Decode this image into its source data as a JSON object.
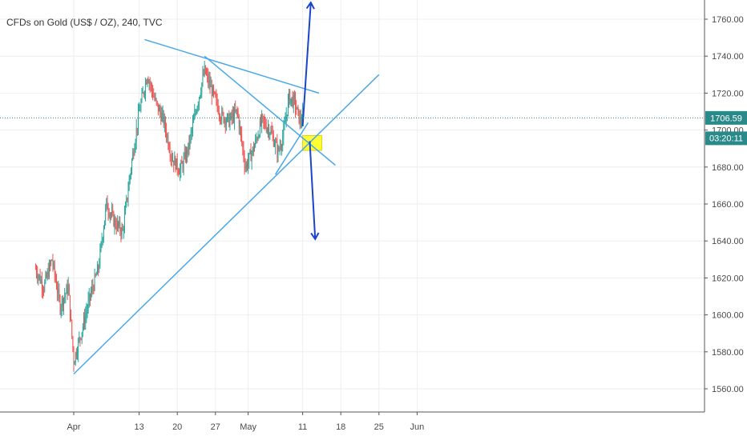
{
  "header": {
    "symbol_title": "CFDs on Gold (US$ / OZ), 240, TVC"
  },
  "chart_data": {
    "type": "candlestick",
    "title": "CFDs on Gold (US$ / OZ), 240, TVC",
    "ylim": [
      1550,
      1770
    ],
    "y_ticks": [
      1560,
      1580,
      1600,
      1620,
      1640,
      1660,
      1680,
      1700,
      1720,
      1740,
      1760
    ],
    "y_tick_labels": [
      "1560.00",
      "1580.00",
      "1600.00",
      "1620.00",
      "1640.00",
      "1660.00",
      "1680.00",
      "1700.00",
      "1720.00",
      "1740.00",
      "1760.00"
    ],
    "x_tick_labels": [
      "Apr",
      "13",
      "20",
      "27",
      "May",
      "11",
      "18",
      "25",
      "Jun"
    ],
    "x_tick_days": [
      1,
      13,
      20,
      27,
      33,
      43,
      50,
      57,
      64
    ],
    "grid": true,
    "current_price": 1706.59,
    "current_price_label": "1706.59",
    "countdown_label": "03:20:11",
    "colors": {
      "up": "#26a69a",
      "down": "#ef5350",
      "trendline": "#4aa8e8",
      "arrow": "#1a45c8",
      "highlight": "#ffff33",
      "price_line": "#2a8a8a"
    },
    "anchors": [
      {
        "day": -6,
        "price": 1625
      },
      {
        "day": -4.5,
        "price": 1615
      },
      {
        "day": -3,
        "price": 1630
      },
      {
        "day": -1.5,
        "price": 1605
      },
      {
        "day": 0,
        "price": 1615
      },
      {
        "day": 1,
        "price": 1575
      },
      {
        "day": 2.5,
        "price": 1592
      },
      {
        "day": 4,
        "price": 1610
      },
      {
        "day": 5.5,
        "price": 1625
      },
      {
        "day": 7,
        "price": 1660
      },
      {
        "day": 8.5,
        "price": 1650
      },
      {
        "day": 10,
        "price": 1645
      },
      {
        "day": 11.5,
        "price": 1680
      },
      {
        "day": 13,
        "price": 1710
      },
      {
        "day": 14.5,
        "price": 1730
      },
      {
        "day": 16,
        "price": 1715
      },
      {
        "day": 17.5,
        "price": 1705
      },
      {
        "day": 19,
        "price": 1685
      },
      {
        "day": 20.5,
        "price": 1678
      },
      {
        "day": 22,
        "price": 1690
      },
      {
        "day": 23.5,
        "price": 1712
      },
      {
        "day": 25,
        "price": 1732
      },
      {
        "day": 26.5,
        "price": 1720
      },
      {
        "day": 28,
        "price": 1708
      },
      {
        "day": 29.5,
        "price": 1705
      },
      {
        "day": 31,
        "price": 1710
      },
      {
        "day": 32.5,
        "price": 1680
      },
      {
        "day": 34,
        "price": 1690
      },
      {
        "day": 35.5,
        "price": 1705
      },
      {
        "day": 37,
        "price": 1700
      },
      {
        "day": 38.5,
        "price": 1688
      },
      {
        "day": 39.5,
        "price": 1698
      },
      {
        "day": 40.5,
        "price": 1718
      },
      {
        "day": 41.5,
        "price": 1715
      },
      {
        "day": 42.5,
        "price": 1705
      },
      {
        "day": 43,
        "price": 1707
      }
    ],
    "trendlines": [
      {
        "from": {
          "day": 1,
          "price": 1568
        },
        "to": {
          "day": 57,
          "price": 1730
        }
      },
      {
        "from": {
          "day": 14,
          "price": 1749
        },
        "to": {
          "day": 46,
          "price": 1720
        }
      },
      {
        "from": {
          "day": 25,
          "price": 1740
        },
        "to": {
          "day": 49,
          "price": 1681
        }
      },
      {
        "from": {
          "day": 38,
          "price": 1676
        },
        "to": {
          "day": 44,
          "price": 1704
        }
      }
    ],
    "arrows": [
      {
        "from": {
          "day": 43,
          "price": 1702
        },
        "to": {
          "day": 44.5,
          "price": 1769
        }
      },
      {
        "from": {
          "day": 44.3,
          "price": 1694
        },
        "to": {
          "day": 45.3,
          "price": 1641
        }
      }
    ],
    "highlight_box": {
      "day_start": 43,
      "day_end": 46.5,
      "price_top": 1697,
      "price_bottom": 1689
    }
  }
}
